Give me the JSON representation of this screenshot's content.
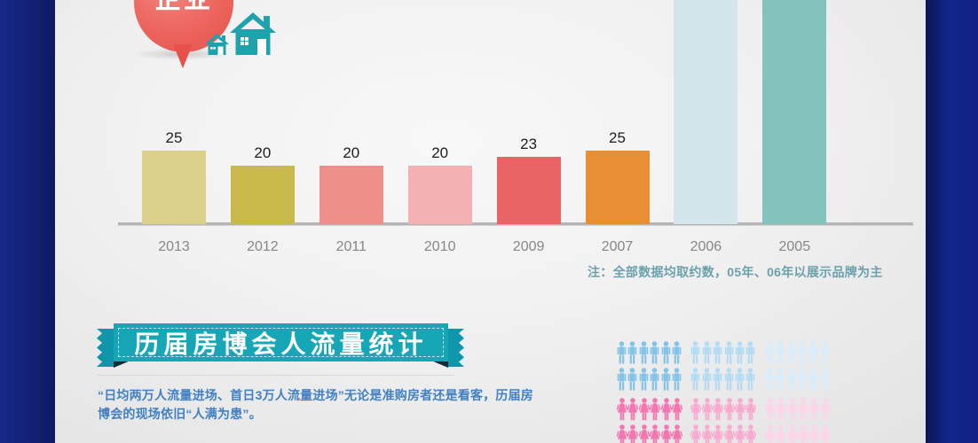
{
  "page": {
    "balloon_label": "企业",
    "section_title": "历届房博会人流量统计",
    "paragraph": "“日均两万人流量进场、首日3万人流量进场”无论是准购房者还是看客，历届房博会的现场依旧“人满为患”。"
  },
  "colors": {
    "navy_band": "#12237c",
    "ribbon_teal": "#16a6b6",
    "ribbon_fold": "#0c2e38",
    "house_teal": "#1ea3ac",
    "balloon_red": "#ec655e",
    "note_text": "#6ba1ad",
    "paragraph_text": "#4180c3",
    "axis_line": "#b5b5b5"
  },
  "chart_data": {
    "type": "bar",
    "title": "",
    "xlabel": "",
    "ylabel": "",
    "legend": "none",
    "grid": false,
    "categories": [
      "2013",
      "2012",
      "2011",
      "2010",
      "2009",
      "2007",
      "2006",
      "2005"
    ],
    "values": [
      25,
      20,
      20,
      20,
      23,
      25,
      null,
      null
    ],
    "bars": [
      {
        "year": "2013",
        "value": 25,
        "color": "#dacf8b",
        "offscale": false
      },
      {
        "year": "2012",
        "value": 20,
        "color": "#c8b94b",
        "offscale": false
      },
      {
        "year": "2011",
        "value": 20,
        "color": "#ee8f8a",
        "offscale": false
      },
      {
        "year": "2010",
        "value": 20,
        "color": "#f3b1b1",
        "offscale": false
      },
      {
        "year": "2009",
        "value": 23,
        "color": "#e96464",
        "offscale": false
      },
      {
        "year": "2007",
        "value": 25,
        "color": "#e88f35",
        "offscale": false
      },
      {
        "year": "2006",
        "value": null,
        "color": "#d2e6eb",
        "offscale": true
      },
      {
        "year": "2005",
        "value": null,
        "color": "#82c3bd",
        "offscale": true
      }
    ],
    "note": "注：全部数据均取约数，05年、06年以展示品牌为主"
  },
  "people_chart": {
    "rows": [
      {
        "type": "male",
        "groups": [
          {
            "count": 6,
            "color": "#82c3e9"
          },
          {
            "count": 6,
            "color": "#b2dbf4"
          },
          {
            "count": 6,
            "color": "#d8ecfa"
          }
        ]
      },
      {
        "type": "male",
        "groups": [
          {
            "count": 6,
            "color": "#82c3e9"
          },
          {
            "count": 6,
            "color": "#b2dbf4"
          },
          {
            "count": 6,
            "color": "#d8ecfa"
          }
        ]
      },
      {
        "type": "female",
        "groups": [
          {
            "count": 6,
            "color": "#f376b1"
          },
          {
            "count": 6,
            "color": "#f9abcf"
          },
          {
            "count": 6,
            "color": "#fcd6e8"
          }
        ]
      },
      {
        "type": "female",
        "groups": [
          {
            "count": 6,
            "color": "#f376b1"
          },
          {
            "count": 6,
            "color": "#f9abcf"
          },
          {
            "count": 6,
            "color": "#fcd6e8"
          }
        ]
      }
    ]
  }
}
